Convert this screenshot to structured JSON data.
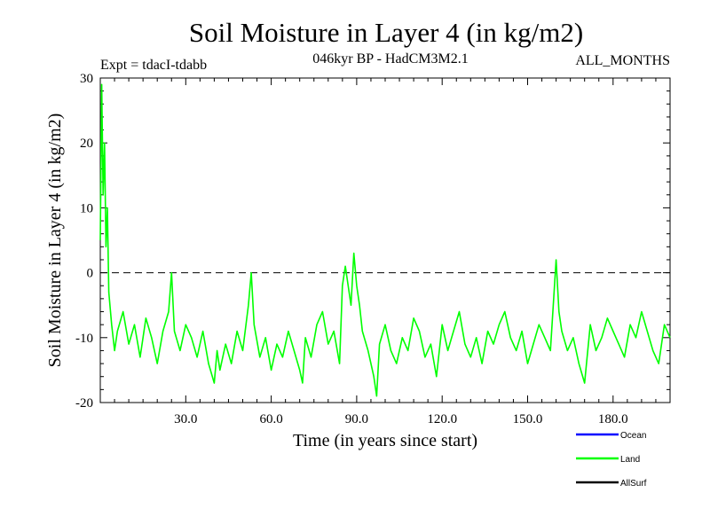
{
  "chart_data": {
    "type": "line",
    "title": "Soil Moisture in Layer 4 (in kg/m2)",
    "subtitle": "046kyr BP - HadCM3M2.1",
    "experiment": "Expt = tdacI-tdabb",
    "months": "ALL_MONTHS",
    "xlabel": "Time (in years since start)",
    "ylabel": "Soil Moisture in Layer 4 (in kg/m2)",
    "xlim": [
      0,
      200
    ],
    "ylim": [
      -20,
      30
    ],
    "xticks": [
      30,
      60,
      90,
      120,
      150,
      180
    ],
    "xtick_labels": [
      "30.0",
      "60.0",
      "90.0",
      "120.0",
      "150.0",
      "180.0"
    ],
    "yticks": [
      -20,
      -10,
      0,
      10,
      20,
      30
    ],
    "ytick_labels": [
      "-20",
      "-10",
      "0",
      "10",
      "20",
      "30"
    ],
    "reference_line": 0,
    "legend": [
      {
        "name": "Ocean",
        "color": "#0000ff"
      },
      {
        "name": "Land",
        "color": "#00ff00"
      },
      {
        "name": "AllSurf",
        "color": "#000000"
      }
    ],
    "series": [
      {
        "name": "Land",
        "color": "#00ff00",
        "x": [
          0,
          0.5,
          1,
          1.5,
          2,
          2.5,
          3,
          4,
          5,
          6,
          8,
          10,
          12,
          14,
          16,
          18,
          20,
          22,
          24,
          25,
          26,
          28,
          30,
          32,
          34,
          36,
          38,
          40,
          41,
          42,
          44,
          46,
          48,
          50,
          52,
          53,
          54,
          56,
          58,
          60,
          62,
          64,
          66,
          68,
          70,
          71,
          72,
          74,
          76,
          78,
          80,
          82,
          84,
          85,
          86,
          88,
          89,
          90,
          91,
          92,
          94,
          96,
          97,
          98,
          100,
          102,
          104,
          106,
          108,
          110,
          112,
          114,
          116,
          118,
          120,
          122,
          124,
          126,
          128,
          130,
          132,
          134,
          136,
          138,
          140,
          142,
          144,
          146,
          148,
          150,
          152,
          154,
          156,
          158,
          159,
          160,
          161,
          162,
          164,
          166,
          168,
          170,
          172,
          174,
          176,
          178,
          180,
          182,
          184,
          186,
          188,
          190,
          192,
          194,
          196,
          198,
          200
        ],
        "values": [
          5,
          29,
          12,
          20,
          4,
          10,
          -3,
          -8,
          -12,
          -9,
          -6,
          -11,
          -8,
          -13,
          -7,
          -10,
          -14,
          -9,
          -6,
          0,
          -9,
          -12,
          -8,
          -10,
          -13,
          -9,
          -14,
          -17,
          -12,
          -15,
          -11,
          -14,
          -9,
          -12,
          -5,
          0,
          -8,
          -13,
          -10,
          -15,
          -11,
          -13,
          -9,
          -12,
          -15,
          -17,
          -10,
          -13,
          -8,
          -6,
          -11,
          -9,
          -14,
          -2,
          1,
          -5,
          3,
          -2,
          -5,
          -9,
          -12,
          -16,
          -19,
          -11,
          -8,
          -12,
          -14,
          -10,
          -12,
          -7,
          -9,
          -13,
          -11,
          -16,
          -8,
          -12,
          -9,
          -6,
          -11,
          -13,
          -10,
          -14,
          -9,
          -11,
          -8,
          -6,
          -10,
          -12,
          -9,
          -14,
          -11,
          -8,
          -10,
          -12,
          -5,
          2,
          -6,
          -9,
          -12,
          -10,
          -14,
          -17,
          -8,
          -12,
          -10,
          -7,
          -9,
          -11,
          -13,
          -8,
          -10,
          -6,
          -9,
          -12,
          -14,
          -8,
          -10
        ]
      }
    ]
  }
}
